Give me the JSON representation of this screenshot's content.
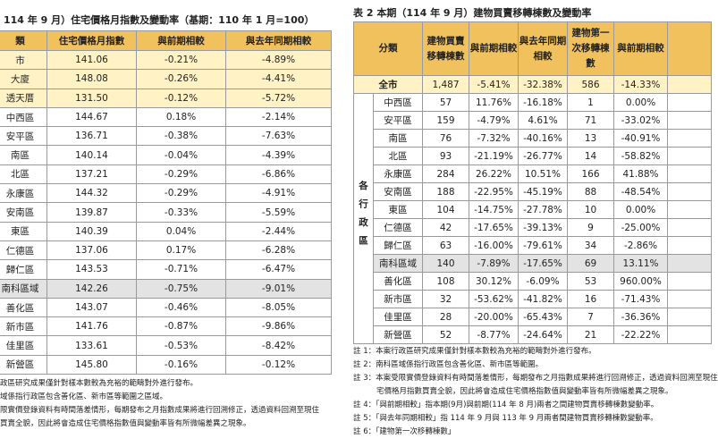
{
  "left": {
    "title": "114 年 9 月）住宅價格月指數及變動率（基期：110 年 1 月=100）",
    "headers": [
      "類",
      "住宅價格月指數",
      "與前期相較",
      "與去年同期相較"
    ],
    "rows": [
      [
        "市",
        "141.06",
        "-0.21%",
        "-4.89%"
      ],
      [
        "大廈",
        "148.08",
        "-0.26%",
        "-4.41%"
      ],
      [
        "透天厝",
        "131.50",
        "-0.12%",
        "-5.72%"
      ],
      [
        "中西區",
        "144.67",
        "0.18%",
        "-2.14%"
      ],
      [
        "安平區",
        "136.71",
        "-0.38%",
        "-7.63%"
      ],
      [
        "南區",
        "140.14",
        "-0.04%",
        "-4.39%"
      ],
      [
        "北區",
        "137.21",
        "-0.29%",
        "-6.86%"
      ],
      [
        "永康區",
        "144.32",
        "-0.29%",
        "-4.91%"
      ],
      [
        "安南區",
        "139.87",
        "-0.33%",
        "-5.59%"
      ],
      [
        "東區",
        "140.39",
        "0.04%",
        "-2.44%"
      ],
      [
        "仁德區",
        "137.06",
        "0.17%",
        "-6.28%"
      ],
      [
        "歸仁區",
        "143.53",
        "-0.71%",
        "-6.47%"
      ],
      [
        "南科區域",
        "142.26",
        "-0.75%",
        "-9.01%"
      ],
      [
        "善化區",
        "143.07",
        "-0.46%",
        "-8.05%"
      ],
      [
        "新市區",
        "141.76",
        "-0.87%",
        "-9.86%"
      ],
      [
        "佳里區",
        "133.61",
        "-0.53%",
        "-8.42%"
      ],
      [
        "新營區",
        "145.80",
        "-0.16%",
        "-0.12%"
      ]
    ],
    "notes": [
      "政區研究成果僅針對樣本數較為充裕的範疇對外進行發布。",
      "域係指行政區包含善化區、新市區等範圍之區域。",
      "限實價登錄資料有時間落差情形，每期發布之月指數成果將進行回溯修正，透過資料回溯至現住",
      "買賣全貌，因此將會造成住宅價格指數值與變動率皆有所微幅差異之現象。"
    ]
  },
  "right": {
    "title": "表 2 本期（114 年 9 月）建物買賣移轉棟數及變動率",
    "headers": [
      "分類",
      "建物買賣移轉棟數",
      "與前期相較",
      "與去年同期相較",
      "建物第一次移轉棟數",
      "與前期相較"
    ],
    "group_label": "各行政區",
    "total": [
      "全市",
      "1,487",
      "-5.41%",
      "-32.38%",
      "586",
      "-14.33%"
    ],
    "rows": [
      [
        "中西區",
        "57",
        "11.76%",
        "-16.18%",
        "1",
        "0.00%"
      ],
      [
        "安平區",
        "159",
        "-4.79%",
        "4.61%",
        "71",
        "-33.02%"
      ],
      [
        "南區",
        "76",
        "-7.32%",
        "-40.16%",
        "13",
        "-40.91%"
      ],
      [
        "北區",
        "93",
        "-21.19%",
        "-26.77%",
        "14",
        "-58.82%"
      ],
      [
        "永康區",
        "284",
        "26.22%",
        "10.51%",
        "166",
        "41.88%"
      ],
      [
        "安南區",
        "188",
        "-22.95%",
        "-45.19%",
        "88",
        "-48.54%"
      ],
      [
        "東區",
        "104",
        "-14.75%",
        "-27.78%",
        "10",
        "0.00%"
      ],
      [
        "仁德區",
        "42",
        "-17.65%",
        "-39.13%",
        "9",
        "-25.00%"
      ],
      [
        "歸仁區",
        "63",
        "-16.00%",
        "-79.61%",
        "34",
        "-2.86%"
      ],
      [
        "南科區域",
        "140",
        "-7.89%",
        "-17.65%",
        "69",
        "13.11%"
      ],
      [
        "善化區",
        "108",
        "30.12%",
        "-6.09%",
        "53",
        "960.00%"
      ],
      [
        "新市區",
        "32",
        "-53.62%",
        "-41.82%",
        "16",
        "-71.43%"
      ],
      [
        "佳里區",
        "28",
        "-20.00%",
        "-65.43%",
        "7",
        "-36.36%"
      ],
      [
        "新營區",
        "52",
        "-8.77%",
        "-24.64%",
        "21",
        "-22.22%"
      ]
    ],
    "notes": [
      "註 1：本案行政區研究成果僅針對樣本數較為充裕的範疇對外進行發布。",
      "註 2：南科區域係指行政區包含善化區、新市區等範圍。",
      "註 3：本案受限實價登錄資料有時間落差情形，每期發布之月指數成果將進行回溯修正，透過資料回溯至現住",
      "宅價格月指數買賣全貌，因此將會造成住宅價格指數值與變動率皆有所微幅差異之現象。",
      "註 4：「與前期相較」指本期(9月)與前期(114 年 8 月)兩者之間建物買賣移轉棟數變動率。",
      "註 5：「與去年同期相較」指 114 年 9 月與 113 年 9 月兩者間建物買賣移轉棟數變動率。",
      "註 6：「建物第一次移轉棟數」"
    ]
  }
}
